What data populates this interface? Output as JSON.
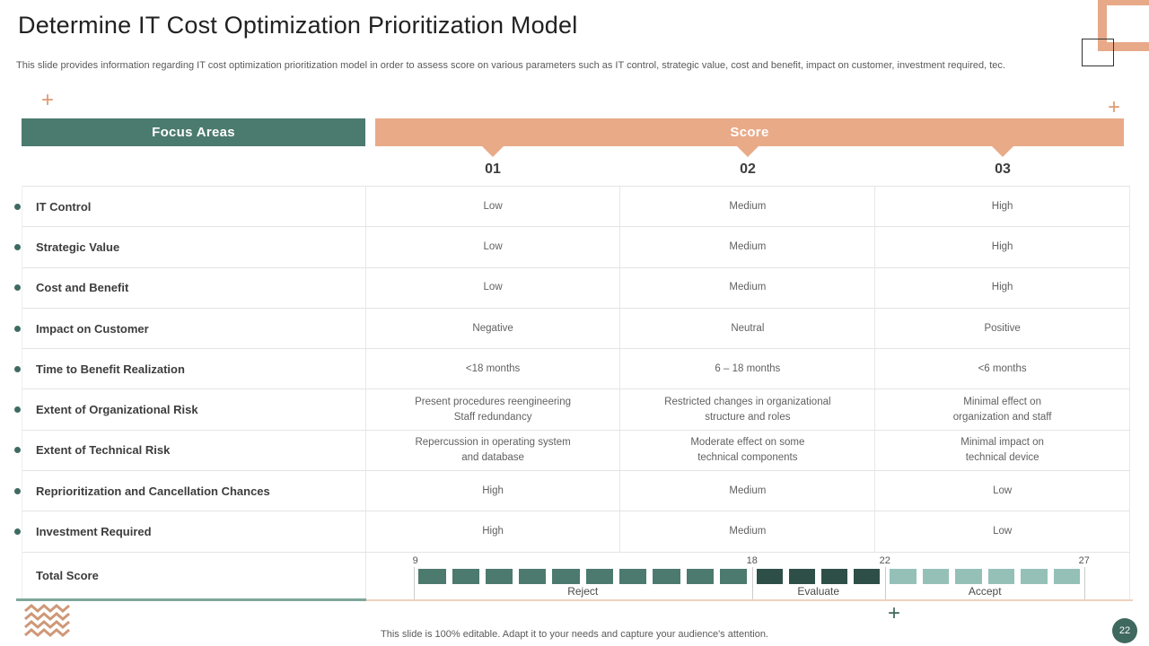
{
  "header": {
    "title": "Determine IT Cost Optimization Prioritization Model",
    "subtitle": "This slide provides information regarding IT cost optimization prioritization model in order to assess score on various parameters such as IT control, strategic value, cost and benefit, impact on customer, investment required, tec."
  },
  "table": {
    "focus_areas_header": "Focus Areas",
    "score_header": "Score",
    "score_levels": [
      "01",
      "02",
      "03"
    ],
    "rows": [
      {
        "label": "IT Control",
        "values": [
          "Low",
          "Medium",
          "High"
        ]
      },
      {
        "label": "Strategic Value",
        "values": [
          "Low",
          "Medium",
          "High"
        ]
      },
      {
        "label": "Cost and Benefit",
        "values": [
          "Low",
          "Medium",
          "High"
        ]
      },
      {
        "label": "Impact on Customer",
        "values": [
          "Negative",
          "Neutral",
          "Positive"
        ]
      },
      {
        "label": "Time to Benefit Realization",
        "values": [
          "<18 months",
          "6 – 18 months",
          "<6 months"
        ]
      },
      {
        "label": "Extent of Organizational Risk",
        "values": [
          "Present procedures reengineering\nStaff redundancy",
          "Restricted changes in organizational\nstructure and roles",
          "Minimal effect on\norganization and staff"
        ]
      },
      {
        "label": "Extent of Technical Risk",
        "values": [
          "Repercussion in operating system\nand database",
          "Moderate effect on some\ntechnical components",
          "Minimal impact on\ntechnical device"
        ]
      },
      {
        "label": "Reprioritization and Cancellation Chances",
        "values": [
          "High",
          "Medium",
          "Low"
        ]
      },
      {
        "label": "Investment Required",
        "values": [
          "High",
          "Medium",
          "Low"
        ]
      }
    ],
    "total_row": {
      "label": "Total Score",
      "scale": {
        "ticks": [
          "9",
          "18",
          "22",
          "27"
        ],
        "zones": [
          {
            "label": "Reject",
            "segments": 10,
            "color": "#4d7a6e"
          },
          {
            "label": "Evaluate",
            "segments": 4,
            "color": "#2e4f48"
          },
          {
            "label": "Accept",
            "segments": 6,
            "color": "#95c0b8"
          }
        ]
      }
    }
  },
  "footer": {
    "note": "This slide is 100% editable. Adapt it to your needs and capture your audience's attention.",
    "page_number": "22"
  },
  "colors": {
    "teal_header": "#4b7a6e",
    "salmon_header": "#e9aa88",
    "reject_segment": "#4d7a6e",
    "evaluate_segment": "#2e4f48",
    "accept_segment": "#95c0b8",
    "page_badge": "#3f685e"
  }
}
